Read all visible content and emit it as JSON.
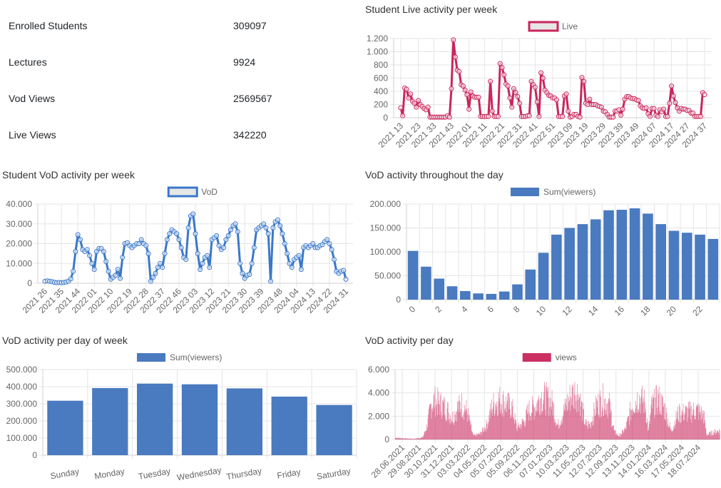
{
  "stats": [
    {
      "label": "Enrolled Students",
      "value": "309097"
    },
    {
      "label": "Lectures",
      "value": "9924"
    },
    {
      "label": "Vod Views",
      "value": "2569567"
    },
    {
      "label": "Live Views",
      "value": "342220"
    }
  ],
  "colors": {
    "live": "#c9265b",
    "vod": "#3a78c9",
    "bar": "#4a7abf",
    "daily": "#cc2f62"
  },
  "chart_data": [
    {
      "id": "live",
      "type": "line",
      "title": "Student Live activity per week",
      "legend": "Live",
      "xtick_labels": [
        "2021 13",
        "2021 23",
        "2021 33",
        "2021 43",
        "2022 01",
        "2022 11",
        "2022 21",
        "2022 31",
        "2022 41",
        "2022 51",
        "2023 09",
        "2023 19",
        "2023 29",
        "2023 39",
        "2023 49",
        "2024 07",
        "2024 17",
        "2024 27",
        "2024 37"
      ],
      "ylim": [
        0,
        1200
      ],
      "yticks": [
        0,
        200,
        400,
        600,
        800,
        1000,
        1200
      ],
      "ytick_labels": [
        "0",
        "200",
        "400",
        "600",
        "800",
        "1.000",
        "1.200"
      ],
      "values": [
        150,
        30,
        450,
        430,
        300,
        360,
        250,
        220,
        160,
        260,
        200,
        170,
        140,
        120,
        160,
        10,
        10,
        10,
        10,
        10,
        10,
        10,
        10,
        10,
        30,
        10,
        440,
        1180,
        920,
        720,
        700,
        500,
        480,
        420,
        350,
        130,
        390,
        330,
        310,
        310,
        310,
        20,
        20,
        20,
        20,
        20,
        550,
        100,
        20,
        20,
        20,
        820,
        760,
        650,
        510,
        480,
        300,
        160,
        440,
        380,
        320,
        220,
        20,
        20,
        20,
        30,
        30,
        550,
        500,
        460,
        240,
        20,
        680,
        600,
        420,
        380,
        340,
        330,
        300,
        300,
        270,
        20,
        20,
        20,
        330,
        360,
        100,
        10,
        20,
        50,
        50,
        20,
        10,
        610,
        550,
        220,
        200,
        280,
        200,
        200,
        200,
        180,
        170,
        160,
        100,
        90,
        50,
        10,
        10,
        10,
        100,
        100,
        120,
        40,
        130,
        280,
        320,
        320,
        300,
        290,
        290,
        270,
        260,
        180,
        150,
        140,
        150,
        60,
        20,
        140,
        140,
        40,
        20,
        120,
        90,
        130,
        20,
        20,
        220,
        480,
        330,
        230,
        150,
        100,
        140,
        130,
        130,
        110,
        110,
        70,
        70,
        20,
        20,
        20,
        20,
        380,
        350
      ]
    },
    {
      "id": "vod",
      "type": "line",
      "title": "Student VoD activity per week",
      "legend": "VoD",
      "xtick_labels": [
        "2021 26",
        "2021 35",
        "2021 44",
        "2022 01",
        "2022 10",
        "2022 19",
        "2022 28",
        "2022 37",
        "2022 46",
        "2023 03",
        "2023 12",
        "2023 21",
        "2023 30",
        "2023 39",
        "2023 48",
        "2024 04",
        "2024 13",
        "2024 22",
        "2024 31"
      ],
      "ylim": [
        0,
        40000
      ],
      "yticks": [
        0,
        10000,
        20000,
        30000,
        40000
      ],
      "ytick_labels": [
        "0",
        "10.000",
        "20.000",
        "30.000",
        "40.000"
      ],
      "values": [
        1000,
        1200,
        1000,
        800,
        500,
        300,
        400,
        300,
        400,
        600,
        1000,
        2200,
        6000,
        16000,
        24500,
        22000,
        17000,
        16000,
        17000,
        14000,
        10000,
        7000,
        16000,
        17500,
        17500,
        16000,
        11000,
        6000,
        2000,
        3000,
        4000,
        7000,
        2500,
        13000,
        20000,
        20500,
        19000,
        18000,
        19000,
        20000,
        20000,
        22000,
        20000,
        19000,
        15000,
        1000,
        3000,
        5000,
        8000,
        10000,
        8000,
        15000,
        22000,
        25000,
        27000,
        26000,
        25000,
        22000,
        18000,
        13000,
        12000,
        28000,
        34000,
        35000,
        25000,
        15000,
        7000,
        10000,
        13000,
        14000,
        8000,
        22000,
        23000,
        24000,
        19000,
        17000,
        18000,
        22000,
        24000,
        27000,
        29000,
        30000,
        26000,
        10000,
        5000,
        2500,
        4000,
        4500,
        10000,
        18000,
        27000,
        28000,
        29000,
        30000,
        28000,
        25000,
        1000,
        28000,
        31000,
        32000,
        29000,
        25000,
        20000,
        15000,
        10000,
        8000,
        12000,
        13000,
        14000,
        7000,
        18000,
        19000,
        18000,
        19000,
        20000,
        18000,
        18000,
        19000,
        19500,
        21000,
        22000,
        20000,
        17000,
        12000,
        6000,
        5000,
        6000,
        6500,
        2000
      ]
    },
    {
      "id": "hour",
      "type": "bar",
      "title": "VoD activity throughout the day",
      "legend": "Sum(viewers)",
      "categories": [
        "0",
        "1",
        "2",
        "3",
        "4",
        "5",
        "6",
        "7",
        "8",
        "9",
        "10",
        "11",
        "12",
        "13",
        "14",
        "15",
        "16",
        "17",
        "18",
        "19",
        "20",
        "21",
        "22",
        "23"
      ],
      "xtick_labels": [
        "0",
        "2",
        "4",
        "6",
        "8",
        "10",
        "12",
        "14",
        "16",
        "18",
        "20",
        "22"
      ],
      "ylim": [
        0,
        200000
      ],
      "yticks": [
        0,
        50000,
        100000,
        150000,
        200000
      ],
      "ytick_labels": [
        "0",
        "50.000",
        "100.000",
        "150.000",
        "200.000"
      ],
      "values": [
        102000,
        69000,
        44000,
        28000,
        18000,
        13000,
        12000,
        17000,
        32000,
        63000,
        98000,
        136000,
        150000,
        158000,
        168000,
        187000,
        188000,
        191000,
        180000,
        158000,
        144000,
        140000,
        136000,
        127000
      ]
    },
    {
      "id": "weekday",
      "type": "bar",
      "title": "VoD activity per day of week",
      "legend": "Sum(viewers)",
      "categories": [
        "Sunday",
        "Monday",
        "Tuesday",
        "Wednesday",
        "Thursday",
        "Friday",
        "Saturday"
      ],
      "ylim": [
        0,
        500000
      ],
      "yticks": [
        0,
        100000,
        200000,
        300000,
        400000,
        500000
      ],
      "ytick_labels": [
        "0",
        "100.000",
        "200.000",
        "300.000",
        "400.000",
        "500.000"
      ],
      "values": [
        318000,
        392000,
        418000,
        414000,
        390000,
        342000,
        293000
      ]
    },
    {
      "id": "daily",
      "type": "bar",
      "title": "VoD activity per day",
      "legend": "views",
      "xtick_labels": [
        "28.06.2021",
        "29.08.2021",
        "30.10.2021",
        "31.12.2021",
        "03.03.2022",
        "04.05.2022",
        "05.07.2022",
        "05.09.2022",
        "06.11.2022",
        "07.01.2023",
        "10.03.2023",
        "11.05.2023",
        "12.07.2023",
        "12.09.2023",
        "13.11.2023",
        "14.01.2024",
        "16.03.2024",
        "17.05.2024",
        "18.07.2024"
      ],
      "ylim": [
        0,
        6000
      ],
      "yticks": [
        0,
        2000,
        4000,
        6000
      ],
      "ytick_labels": [
        "0",
        "2.000",
        "4.000",
        "6.000"
      ],
      "envelope": [
        [
          0,
          200
        ],
        [
          0.03,
          120
        ],
        [
          0.06,
          80
        ],
        [
          0.085,
          250
        ],
        [
          0.1,
          1800
        ],
        [
          0.11,
          3800
        ],
        [
          0.12,
          4300
        ],
        [
          0.14,
          3900
        ],
        [
          0.16,
          3300
        ],
        [
          0.175,
          2400
        ],
        [
          0.19,
          3400
        ],
        [
          0.205,
          3900
        ],
        [
          0.22,
          3200
        ],
        [
          0.24,
          400
        ],
        [
          0.26,
          600
        ],
        [
          0.28,
          1500
        ],
        [
          0.3,
          3800
        ],
        [
          0.32,
          4400
        ],
        [
          0.34,
          4000
        ],
        [
          0.36,
          3500
        ],
        [
          0.375,
          1200
        ],
        [
          0.39,
          1800
        ],
        [
          0.4,
          2200
        ],
        [
          0.41,
          3200
        ],
        [
          0.43,
          3600
        ],
        [
          0.45,
          4800
        ],
        [
          0.47,
          4400
        ],
        [
          0.485,
          3900
        ],
        [
          0.5,
          1500
        ],
        [
          0.52,
          3200
        ],
        [
          0.54,
          4800
        ],
        [
          0.555,
          5300
        ],
        [
          0.565,
          5100
        ],
        [
          0.585,
          1700
        ],
        [
          0.6,
          1600
        ],
        [
          0.62,
          3800
        ],
        [
          0.64,
          4400
        ],
        [
          0.66,
          3800
        ],
        [
          0.675,
          800
        ],
        [
          0.69,
          400
        ],
        [
          0.71,
          1200
        ],
        [
          0.73,
          3800
        ],
        [
          0.75,
          4700
        ],
        [
          0.77,
          4000
        ],
        [
          0.78,
          800
        ],
        [
          0.79,
          3700
        ],
        [
          0.81,
          4500
        ],
        [
          0.83,
          3400
        ],
        [
          0.85,
          900
        ],
        [
          0.87,
          2800
        ],
        [
          0.9,
          3000
        ],
        [
          0.93,
          3200
        ],
        [
          0.95,
          2700
        ],
        [
          0.96,
          500
        ],
        [
          0.98,
          800
        ],
        [
          1,
          1000
        ]
      ]
    }
  ]
}
